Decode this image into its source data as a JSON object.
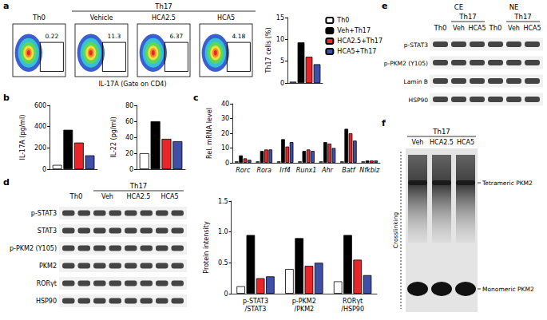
{
  "panel_labels": [
    "a",
    "b",
    "c",
    "d",
    "e",
    "f"
  ],
  "flow": {
    "xlabel": "IL-17A (Gate on CD4)",
    "plots": [
      {
        "group": "Th0",
        "gate": 0.22
      },
      {
        "group": "Th17",
        "condition": "Vehicle",
        "gate": 11.3
      },
      {
        "group": "Th17",
        "condition": "HCA2.5",
        "gate": 6.37
      },
      {
        "group": "Th17",
        "condition": "HCA5",
        "gate": 4.18
      }
    ]
  },
  "chart_data": [
    {
      "type": "bar",
      "ylabel": "Th17 cells (%)",
      "categories": [
        null
      ],
      "series": [
        {
          "name": "Th0",
          "color": "#ffffff",
          "values": [
            0.3
          ]
        },
        {
          "name": "Veh+Th17",
          "color": "#000000",
          "values": [
            9.3
          ]
        },
        {
          "name": "HCA2.5+Th17",
          "color": "#e8262a",
          "values": [
            6.0
          ]
        },
        {
          "name": "HCA5+Th17",
          "color": "#3f4fa8",
          "values": [
            4.3
          ]
        }
      ],
      "ylim": [
        0,
        15
      ],
      "yticks": [
        0,
        5,
        10,
        15
      ],
      "grid": false,
      "legend": "top-right",
      "tick_labels": "y"
    },
    {
      "type": "bar",
      "ylabel": "IL-17A (pg/ml)",
      "categories": [
        null
      ],
      "series": [
        {
          "name": "Th0",
          "color": "#ffffff",
          "values": [
            40
          ]
        },
        {
          "name": "Veh+Th17",
          "color": "#000000",
          "values": [
            370
          ]
        },
        {
          "name": "HCA2.5+Th17",
          "color": "#e8262a",
          "values": [
            250
          ]
        },
        {
          "name": "HCA5+Th17",
          "color": "#3f4fa8",
          "values": [
            130
          ]
        }
      ],
      "ylim": [
        0,
        600
      ],
      "yticks": [
        0,
        200,
        400,
        600
      ],
      "grid": false,
      "tick_labels": "y"
    },
    {
      "type": "bar",
      "ylabel": "IL-22 (pg/ml)",
      "categories": [
        null
      ],
      "series": [
        {
          "name": "Th0",
          "color": "#ffffff",
          "values": [
            20
          ]
        },
        {
          "name": "Veh+Th17",
          "color": "#000000",
          "values": [
            60
          ]
        },
        {
          "name": "HCA2.5+Th17",
          "color": "#e8262a",
          "values": [
            38
          ]
        },
        {
          "name": "HCA5+Th17",
          "color": "#3f4fa8",
          "values": [
            35
          ]
        }
      ],
      "ylim": [
        0,
        80
      ],
      "yticks": [
        0,
        20,
        40,
        60,
        80
      ],
      "grid": false,
      "tick_labels": "y"
    },
    {
      "type": "bar",
      "ylabel": "Rel. mRNA level",
      "categories": [
        "Rorc",
        "Rora",
        "Irf4",
        "Runx1",
        "Ahr",
        "Batf",
        "Nfkbiz"
      ],
      "series": [
        {
          "name": "Th0",
          "color": "#ffffff",
          "values": [
            1,
            1,
            1,
            1,
            1,
            1,
            1
          ]
        },
        {
          "name": "Veh+Th17",
          "color": "#000000",
          "values": [
            5,
            8,
            16,
            8,
            14,
            23,
            1.5
          ]
        },
        {
          "name": "HCA2.5+Th17",
          "color": "#e8262a",
          "values": [
            3,
            9,
            11,
            9,
            13,
            20,
            1.5
          ]
        },
        {
          "name": "HCA5+Th17",
          "color": "#3f4fa8",
          "values": [
            2,
            9,
            14,
            8,
            10,
            15,
            1.5
          ]
        }
      ],
      "ylim": [
        0,
        40
      ],
      "yticks": [
        0,
        10,
        20,
        30,
        40
      ],
      "grid": false
    },
    {
      "type": "bar",
      "ylabel": "Protein intensity",
      "categories": [
        "p-STAT3\n/STAT3",
        "p-PKM2\n/PKM2",
        "RORγt\n/HSP90"
      ],
      "series": [
        {
          "name": "Th0",
          "color": "#ffffff",
          "values": [
            0.12,
            0.4,
            0.2
          ]
        },
        {
          "name": "Veh+Th17",
          "color": "#000000",
          "values": [
            0.95,
            0.9,
            0.95
          ]
        },
        {
          "name": "HCA2.5+Th17",
          "color": "#e8262a",
          "values": [
            0.25,
            0.45,
            0.55
          ]
        },
        {
          "name": "HCA5+Th17",
          "color": "#3f4fa8",
          "values": [
            0.28,
            0.5,
            0.3
          ]
        }
      ],
      "ylim": [
        0,
        1.5
      ],
      "yticks": [
        0,
        0.5,
        {
          "value": 1,
          "label": "1.0"
        },
        1.5
      ],
      "grid": false
    }
  ],
  "blot_d": {
    "columns": [
      {
        "group": "Th0"
      },
      {
        "group": "Th17",
        "condition": "Veh"
      },
      {
        "group": "Th17",
        "condition": "HCA2.5"
      },
      {
        "group": "Th17",
        "condition": "HCA5"
      }
    ],
    "rows": [
      "p-STAT3",
      "STAT3",
      "p-PKM2 (Y105)",
      "PKM2",
      "RORγt",
      "HSP90"
    ]
  },
  "blot_e": {
    "sections": [
      {
        "label": "CE",
        "columns": [
          {
            "group": "Th0"
          },
          {
            "group": "Th17",
            "condition": "Veh"
          },
          {
            "group": "Th17",
            "condition": "HCA5"
          }
        ]
      },
      {
        "label": "NE",
        "columns": [
          {
            "group": "Th0"
          },
          {
            "group": "Th17",
            "condition": "Veh"
          },
          {
            "group": "Th17",
            "condition": "HCA5"
          }
        ]
      }
    ],
    "rows": [
      "p-STAT3",
      "p-PKM2 (Y105)",
      "Lamin B",
      "HSP90"
    ]
  },
  "blot_f": {
    "group": "Th17",
    "lanes": [
      "Veh",
      "HCA2.5",
      "HCA5"
    ],
    "side_label": "Crosslinking",
    "bands": [
      "Tetrameric PKM2",
      "Monomeric PKM2"
    ]
  }
}
